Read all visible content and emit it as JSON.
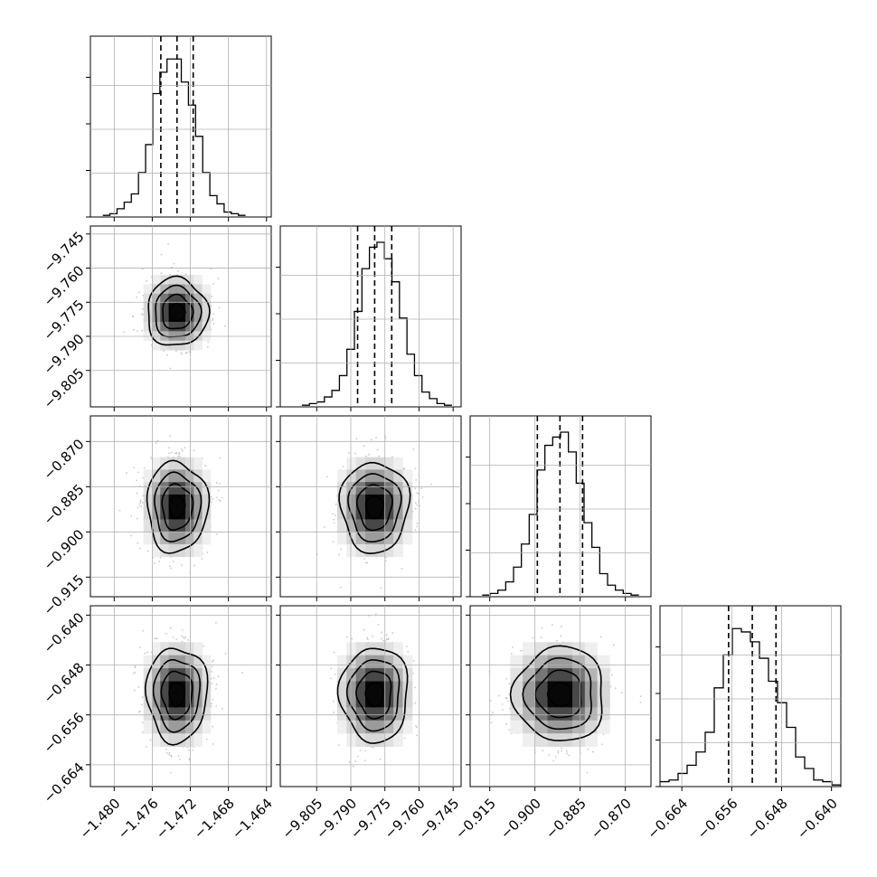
{
  "chart_data": {
    "type": "corner",
    "grid": true,
    "parameters": [
      {
        "index": 0,
        "mean": -1.4734,
        "std": 0.0016,
        "quantiles": [
          -1.4751,
          -1.4734,
          -1.4717
        ],
        "range": [
          -1.4825,
          -1.4635
        ],
        "ticks": [
          -1.48,
          -1.476,
          -1.472,
          -1.468,
          -1.464
        ],
        "tick_labels": [
          "−1.480",
          "−1.476",
          "−1.472",
          "−1.468",
          "−1.464"
        ],
        "hist_counts": [
          0.01,
          0.02,
          0.05,
          0.09,
          0.14,
          0.27,
          0.44,
          0.75,
          0.88,
          0.96,
          0.96,
          0.82,
          0.68,
          0.49,
          0.27,
          0.13,
          0.08,
          0.03,
          0.02,
          0.01
        ],
        "hist_range": [
          -1.4812,
          -1.4662
        ],
        "hist_ylim": [
          0,
          1.0
        ]
      },
      {
        "index": 1,
        "mean": -9.7795,
        "std": 0.0075,
        "quantiles": [
          -9.787,
          -9.7795,
          -9.772
        ],
        "range": [
          -9.821,
          -9.7415
        ],
        "ticks": [
          -9.805,
          -9.79,
          -9.775,
          -9.76,
          -9.745
        ],
        "tick_labels": [
          "−9.805",
          "−9.790",
          "−9.775",
          "−9.760",
          "−9.745"
        ],
        "hist_counts": [
          0.01,
          0.02,
          0.03,
          0.06,
          0.1,
          0.19,
          0.35,
          0.58,
          0.84,
          0.97,
          1.0,
          0.9,
          0.76,
          0.54,
          0.32,
          0.19,
          0.09,
          0.05,
          0.02,
          0.01
        ],
        "hist_range": [
          -9.8115,
          -9.7455
        ],
        "hist_ylim": [
          0,
          1.0
        ]
      },
      {
        "index": 2,
        "mean": -0.8917,
        "std": 0.0075,
        "quantiles": [
          -0.8992,
          -0.8917,
          -0.8842
        ],
        "range": [
          -0.9215,
          -0.8615
        ],
        "ticks": [
          -0.915,
          -0.9,
          -0.885,
          -0.87
        ],
        "tick_labels": [
          "−0.915",
          "−0.900",
          "−0.885",
          "−0.870"
        ],
        "hist_counts": [
          0.01,
          0.02,
          0.04,
          0.09,
          0.18,
          0.32,
          0.5,
          0.77,
          0.92,
          0.97,
          1.0,
          0.88,
          0.69,
          0.45,
          0.3,
          0.14,
          0.07,
          0.04,
          0.02,
          0.01
        ],
        "hist_range": [
          -0.9175,
          -0.8655
        ],
        "hist_ylim": [
          0,
          1.0
        ]
      },
      {
        "index": 3,
        "mean": -0.6527,
        "std": 0.0038,
        "quantiles": [
          -0.6565,
          -0.6527,
          -0.6489
        ],
        "range": [
          -0.6675,
          -0.6385
        ],
        "ticks": [
          -0.664,
          -0.656,
          -0.648,
          -0.64
        ],
        "tick_labels": [
          "−0.664",
          "−0.656",
          "−0.648",
          "−0.640"
        ],
        "hist_counts": [
          0.03,
          0.04,
          0.08,
          0.13,
          0.21,
          0.33,
          0.6,
          0.8,
          0.96,
          0.94,
          0.88,
          0.78,
          0.64,
          0.51,
          0.36,
          0.18,
          0.11,
          0.04,
          0.03,
          0.01
        ],
        "hist_range": [
          -0.6675,
          -0.6385
        ],
        "hist_ylim": [
          0,
          1.0
        ]
      }
    ],
    "histogram_y_tick_counts": 4,
    "contour_levels_sigma": [
      0.5,
      1.0,
      1.5,
      2.0
    ],
    "density_bins": 8
  }
}
